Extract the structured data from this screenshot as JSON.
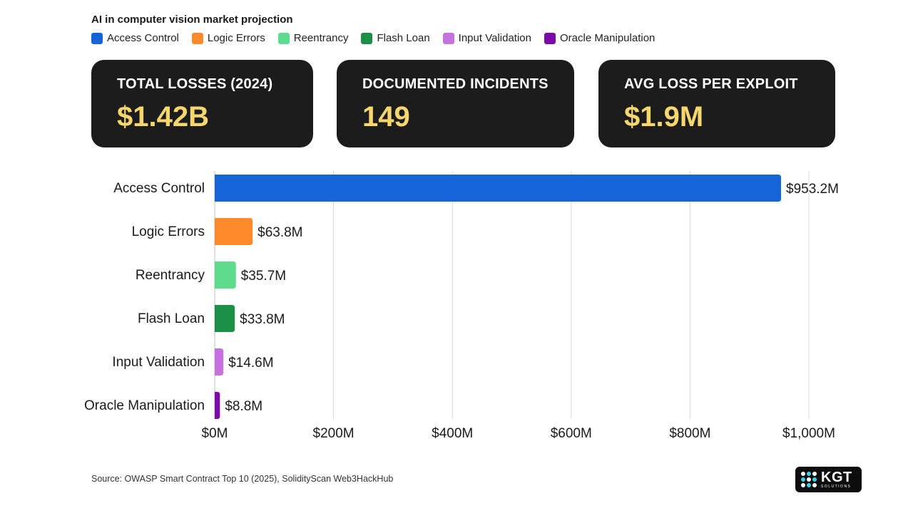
{
  "header": {
    "title": "AI in computer vision market projection"
  },
  "legend": [
    {
      "label": "Access Control",
      "color": "#1565d8"
    },
    {
      "label": "Logic Errors",
      "color": "#ff8a2b"
    },
    {
      "label": "Reentrancy",
      "color": "#5edb8c"
    },
    {
      "label": "Flash Loan",
      "color": "#1a8f45"
    },
    {
      "label": "Input Validation",
      "color": "#c770e0"
    },
    {
      "label": "Oracle Manipulation",
      "color": "#7b0aa8"
    }
  ],
  "stats": [
    {
      "label": "TOTAL LOSSES (2024)",
      "value": "$1.42B"
    },
    {
      "label": "DOCUMENTED INCIDENTS",
      "value": "149"
    },
    {
      "label": "AVG LOSS PER EXPLOIT",
      "value": "$1.9M"
    }
  ],
  "chart_data": {
    "type": "bar",
    "orientation": "horizontal",
    "categories": [
      "Access Control",
      "Logic Errors",
      "Reentrancy",
      "Flash Loan",
      "Input Validation",
      "Oracle Manipulation"
    ],
    "values": [
      953.2,
      63.8,
      35.7,
      33.8,
      14.6,
      8.8
    ],
    "value_labels": [
      "$953.2M",
      "$63.8M",
      "$35.7M",
      "$33.8M",
      "$14.6M",
      "$8.8M"
    ],
    "colors": [
      "#1565d8",
      "#ff8a2b",
      "#5edb8c",
      "#1a8f45",
      "#c770e0",
      "#7b0aa8"
    ],
    "xlim": [
      0,
      1000
    ],
    "xticks": [
      0,
      200,
      400,
      600,
      800,
      1000
    ],
    "xtick_labels": [
      "$0M",
      "$200M",
      "$400M",
      "$600M",
      "$800M",
      "$1,000M"
    ],
    "grid": true,
    "unit": "USD millions"
  },
  "footer": {
    "source": "Source: OWASP Smart Contract Top 10 (2025), SolidityScan Web3HackHub",
    "logo_text": "KGT",
    "logo_sub": "SOLUTIONS"
  }
}
